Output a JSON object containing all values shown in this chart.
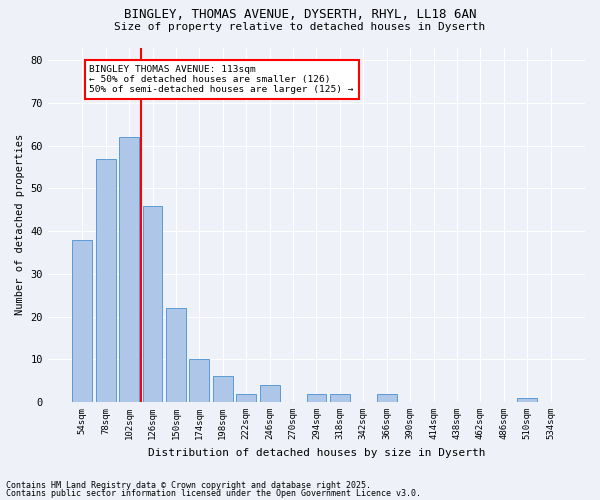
{
  "title1": "BINGLEY, THOMAS AVENUE, DYSERTH, RHYL, LL18 6AN",
  "title2": "Size of property relative to detached houses in Dyserth",
  "xlabel": "Distribution of detached houses by size in Dyserth",
  "ylabel": "Number of detached properties",
  "categories": [
    "54sqm",
    "78sqm",
    "102sqm",
    "126sqm",
    "150sqm",
    "174sqm",
    "198sqm",
    "222sqm",
    "246sqm",
    "270sqm",
    "294sqm",
    "318sqm",
    "342sqm",
    "366sqm",
    "390sqm",
    "414sqm",
    "438sqm",
    "462sqm",
    "486sqm",
    "510sqm",
    "534sqm"
  ],
  "values": [
    38,
    57,
    62,
    46,
    22,
    10,
    6,
    2,
    4,
    0,
    2,
    2,
    0,
    2,
    0,
    0,
    0,
    0,
    0,
    1,
    0
  ],
  "bar_color": "#aec6e8",
  "bar_edge_color": "#5b9bd5",
  "vline_x": 2.5,
  "vline_color": "red",
  "annotation_text": "BINGLEY THOMAS AVENUE: 113sqm\n← 50% of detached houses are smaller (126)\n50% of semi-detached houses are larger (125) →",
  "annotation_box_color": "white",
  "annotation_box_edge": "red",
  "ylim": [
    0,
    83
  ],
  "yticks": [
    0,
    10,
    20,
    30,
    40,
    50,
    60,
    70,
    80
  ],
  "bg_color": "#eef2f8",
  "grid_color": "white",
  "footnote1": "Contains HM Land Registry data © Crown copyright and database right 2025.",
  "footnote2": "Contains public sector information licensed under the Open Government Licence v3.0."
}
